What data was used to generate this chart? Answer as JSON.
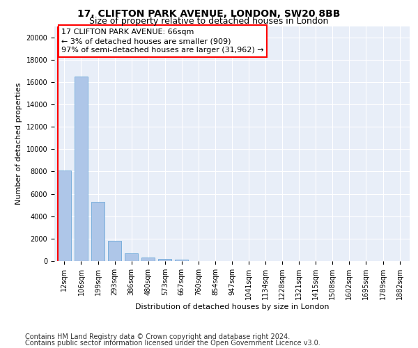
{
  "title": "17, CLIFTON PARK AVENUE, LONDON, SW20 8BB",
  "subtitle": "Size of property relative to detached houses in London",
  "xlabel": "Distribution of detached houses by size in London",
  "ylabel": "Number of detached properties",
  "bar_color": "#aec6e8",
  "bar_edge_color": "#5a9fd4",
  "background_color": "#e8eef8",
  "grid_color": "#ffffff",
  "annotation_text": "17 CLIFTON PARK AVENUE: 66sqm\n← 3% of detached houses are smaller (909)\n97% of semi-detached houses are larger (31,962) →",
  "annotation_box_color": "white",
  "annotation_box_edge_color": "red",
  "red_line_color": "red",
  "categories": [
    "12sqm",
    "106sqm",
    "199sqm",
    "293sqm",
    "386sqm",
    "480sqm",
    "573sqm",
    "667sqm",
    "760sqm",
    "854sqm",
    "947sqm",
    "1041sqm",
    "1134sqm",
    "1228sqm",
    "1321sqm",
    "1415sqm",
    "1508sqm",
    "1602sqm",
    "1695sqm",
    "1789sqm",
    "1882sqm"
  ],
  "values": [
    8100,
    16500,
    5300,
    1800,
    700,
    300,
    170,
    130,
    0,
    0,
    0,
    0,
    0,
    0,
    0,
    0,
    0,
    0,
    0,
    0,
    0
  ],
  "ylim": [
    0,
    21000
  ],
  "yticks": [
    0,
    2000,
    4000,
    6000,
    8000,
    10000,
    12000,
    14000,
    16000,
    18000,
    20000
  ],
  "red_line_x": -0.4,
  "footer_line1": "Contains HM Land Registry data © Crown copyright and database right 2024.",
  "footer_line2": "Contains public sector information licensed under the Open Government Licence v3.0.",
  "title_fontsize": 10,
  "subtitle_fontsize": 9,
  "axis_label_fontsize": 8,
  "tick_fontsize": 7,
  "annotation_fontsize": 8,
  "footer_fontsize": 7
}
